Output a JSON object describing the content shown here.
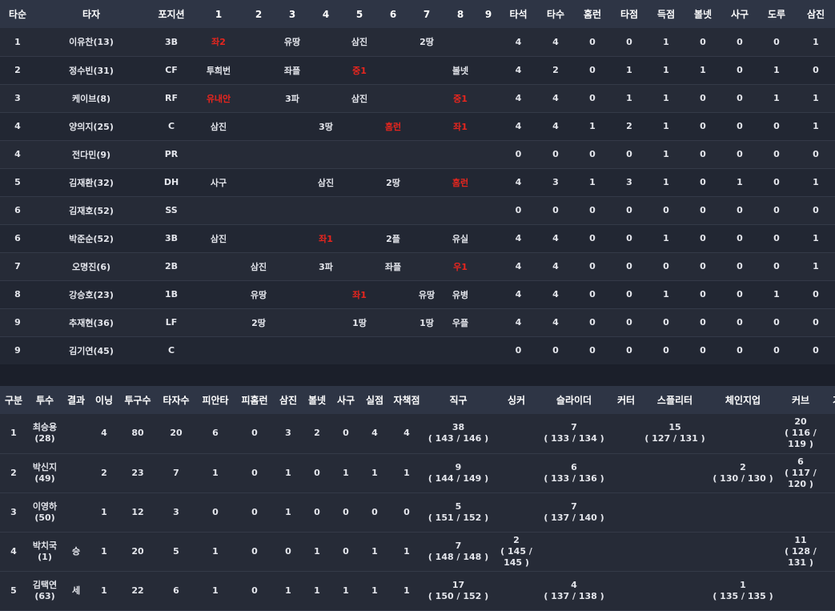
{
  "colors": {
    "background": "#1b1f2a",
    "header": "#2e3545",
    "row": "#262b37",
    "highlight": "#e8251e"
  },
  "batting": {
    "headers": [
      "타순",
      "타자",
      "포지션",
      "1",
      "2",
      "3",
      "4",
      "5",
      "6",
      "7",
      "8",
      "9",
      "타석",
      "타수",
      "홈런",
      "타점",
      "득점",
      "볼넷",
      "사구",
      "도루",
      "삼진"
    ],
    "rows": [
      {
        "order": "1",
        "name": "이유찬(13)",
        "pos": "3B",
        "innings": [
          "좌2",
          "",
          "유땅",
          "",
          "삼진",
          "",
          "2땅",
          "",
          ""
        ],
        "hl": [
          0
        ],
        "stats": [
          "4",
          "4",
          "0",
          "0",
          "1",
          "0",
          "0",
          "0",
          "1"
        ]
      },
      {
        "order": "2",
        "name": "정수빈(31)",
        "pos": "CF",
        "innings": [
          "투희번",
          "",
          "좌플",
          "",
          "중1",
          "",
          "",
          "볼넷",
          ""
        ],
        "hl": [
          4
        ],
        "stats": [
          "4",
          "2",
          "0",
          "1",
          "1",
          "1",
          "0",
          "1",
          "0"
        ]
      },
      {
        "order": "3",
        "name": "케이브(8)",
        "pos": "RF",
        "innings": [
          "유내안",
          "",
          "3파",
          "",
          "삼진",
          "",
          "",
          "중1",
          ""
        ],
        "hl": [
          0,
          7
        ],
        "stats": [
          "4",
          "4",
          "0",
          "1",
          "1",
          "0",
          "0",
          "1",
          "1"
        ]
      },
      {
        "order": "4",
        "name": "양의지(25)",
        "pos": "C",
        "innings": [
          "삼진",
          "",
          "",
          "3땅",
          "",
          "홈런",
          "",
          "좌1",
          ""
        ],
        "hl": [
          5,
          7
        ],
        "stats": [
          "4",
          "4",
          "1",
          "2",
          "1",
          "0",
          "0",
          "0",
          "1"
        ]
      },
      {
        "order": "4",
        "name": "전다민(9)",
        "pos": "PR",
        "innings": [
          "",
          "",
          "",
          "",
          "",
          "",
          "",
          "",
          ""
        ],
        "hl": [],
        "stats": [
          "0",
          "0",
          "0",
          "0",
          "1",
          "0",
          "0",
          "0",
          "0"
        ]
      },
      {
        "order": "5",
        "name": "김재환(32)",
        "pos": "DH",
        "innings": [
          "사구",
          "",
          "",
          "삼진",
          "",
          "2땅",
          "",
          "홈런",
          ""
        ],
        "hl": [
          7
        ],
        "stats": [
          "4",
          "3",
          "1",
          "3",
          "1",
          "0",
          "1",
          "0",
          "1"
        ]
      },
      {
        "order": "6",
        "name": "김재호(52)",
        "pos": "SS",
        "innings": [
          "",
          "",
          "",
          "",
          "",
          "",
          "",
          "",
          ""
        ],
        "hl": [],
        "stats": [
          "0",
          "0",
          "0",
          "0",
          "0",
          "0",
          "0",
          "0",
          "0"
        ]
      },
      {
        "order": "6",
        "name": "박준순(52)",
        "pos": "3B",
        "innings": [
          "삼진",
          "",
          "",
          "좌1",
          "",
          "2플",
          "",
          "유실",
          ""
        ],
        "hl": [
          3
        ],
        "stats": [
          "4",
          "4",
          "0",
          "0",
          "1",
          "0",
          "0",
          "0",
          "1"
        ]
      },
      {
        "order": "7",
        "name": "오명진(6)",
        "pos": "2B",
        "innings": [
          "",
          "삼진",
          "",
          "3파",
          "",
          "좌플",
          "",
          "우1",
          ""
        ],
        "hl": [
          7
        ],
        "stats": [
          "4",
          "4",
          "0",
          "0",
          "0",
          "0",
          "0",
          "0",
          "1"
        ]
      },
      {
        "order": "8",
        "name": "강승호(23)",
        "pos": "1B",
        "innings": [
          "",
          "유땅",
          "",
          "",
          "좌1",
          "",
          "유땅",
          "유병",
          ""
        ],
        "hl": [
          4
        ],
        "stats": [
          "4",
          "4",
          "0",
          "0",
          "1",
          "0",
          "0",
          "1",
          "0"
        ]
      },
      {
        "order": "9",
        "name": "추재현(36)",
        "pos": "LF",
        "innings": [
          "",
          "2땅",
          "",
          "",
          "1땅",
          "",
          "1땅",
          "우플",
          ""
        ],
        "hl": [],
        "stats": [
          "4",
          "4",
          "0",
          "0",
          "0",
          "0",
          "0",
          "0",
          "0"
        ]
      },
      {
        "order": "9",
        "name": "김기연(45)",
        "pos": "C",
        "innings": [
          "",
          "",
          "",
          "",
          "",
          "",
          "",
          "",
          ""
        ],
        "hl": [],
        "stats": [
          "0",
          "0",
          "0",
          "0",
          "0",
          "0",
          "0",
          "0",
          "0"
        ]
      }
    ]
  },
  "pitching": {
    "headers": [
      "구분",
      "투수",
      "결과",
      "이닝",
      "투구수",
      "타자수",
      "피안타",
      "피홈런",
      "삼진",
      "볼넷",
      "사구",
      "실점",
      "자책점",
      "직구",
      "싱커",
      "슬라이더",
      "커터",
      "스플리터",
      "체인지업",
      "커브",
      "기타"
    ],
    "rows": [
      {
        "seq": "1",
        "name": "최승용",
        "num": "(28)",
        "result": "",
        "stats": [
          "4",
          "80",
          "20",
          "6",
          "0",
          "3",
          "2",
          "0",
          "4",
          "4"
        ],
        "pitches": [
          [
            "38",
            "( 143 / 146 )"
          ],
          [
            "",
            ""
          ],
          [
            "7",
            "( 133 / 134 )"
          ],
          [
            "",
            ""
          ],
          [
            "15",
            "( 127 / 131 )"
          ],
          [
            "",
            ""
          ],
          [
            "20",
            "( 116 / 119 )"
          ],
          [
            "",
            ""
          ]
        ]
      },
      {
        "seq": "2",
        "name": "박신지",
        "num": "(49)",
        "result": "",
        "stats": [
          "2",
          "23",
          "7",
          "1",
          "0",
          "1",
          "0",
          "1",
          "1",
          "1"
        ],
        "pitches": [
          [
            "9",
            "( 144 / 149 )"
          ],
          [
            "",
            ""
          ],
          [
            "6",
            "( 133 / 136 )"
          ],
          [
            "",
            ""
          ],
          [
            "",
            ""
          ],
          [
            "2",
            "( 130 / 130 )"
          ],
          [
            "6",
            "( 117 / 120 )"
          ],
          [
            "",
            ""
          ]
        ]
      },
      {
        "seq": "3",
        "name": "이영하",
        "num": "(50)",
        "result": "",
        "stats": [
          "1",
          "12",
          "3",
          "0",
          "0",
          "1",
          "0",
          "0",
          "0",
          "0"
        ],
        "pitches": [
          [
            "5",
            "( 151 / 152 )"
          ],
          [
            "",
            ""
          ],
          [
            "7",
            "( 137 / 140 )"
          ],
          [
            "",
            ""
          ],
          [
            "",
            ""
          ],
          [
            "",
            ""
          ],
          [
            "",
            ""
          ],
          [
            "",
            ""
          ]
        ]
      },
      {
        "seq": "4",
        "name": "박치국",
        "num": "(1)",
        "result": "승",
        "stats": [
          "1",
          "20",
          "5",
          "1",
          "0",
          "0",
          "1",
          "0",
          "1",
          "1"
        ],
        "pitches": [
          [
            "7",
            "( 148 / 148 )"
          ],
          [
            "2",
            "( 145 / 145 )"
          ],
          [
            "",
            ""
          ],
          [
            "",
            ""
          ],
          [
            "",
            ""
          ],
          [
            "",
            ""
          ],
          [
            "11",
            "( 128 / 131 )"
          ],
          [
            "",
            ""
          ]
        ]
      },
      {
        "seq": "5",
        "name": "김택연",
        "num": "(63)",
        "result": "세",
        "stats": [
          "1",
          "22",
          "6",
          "1",
          "0",
          "1",
          "1",
          "1",
          "1",
          "1"
        ],
        "pitches": [
          [
            "17",
            "( 150 / 152 )"
          ],
          [
            "",
            ""
          ],
          [
            "4",
            "( 137 / 138 )"
          ],
          [
            "",
            ""
          ],
          [
            "",
            ""
          ],
          [
            "1",
            "( 135 / 135 )"
          ],
          [
            "",
            ""
          ],
          [
            "",
            ""
          ]
        ]
      }
    ]
  }
}
